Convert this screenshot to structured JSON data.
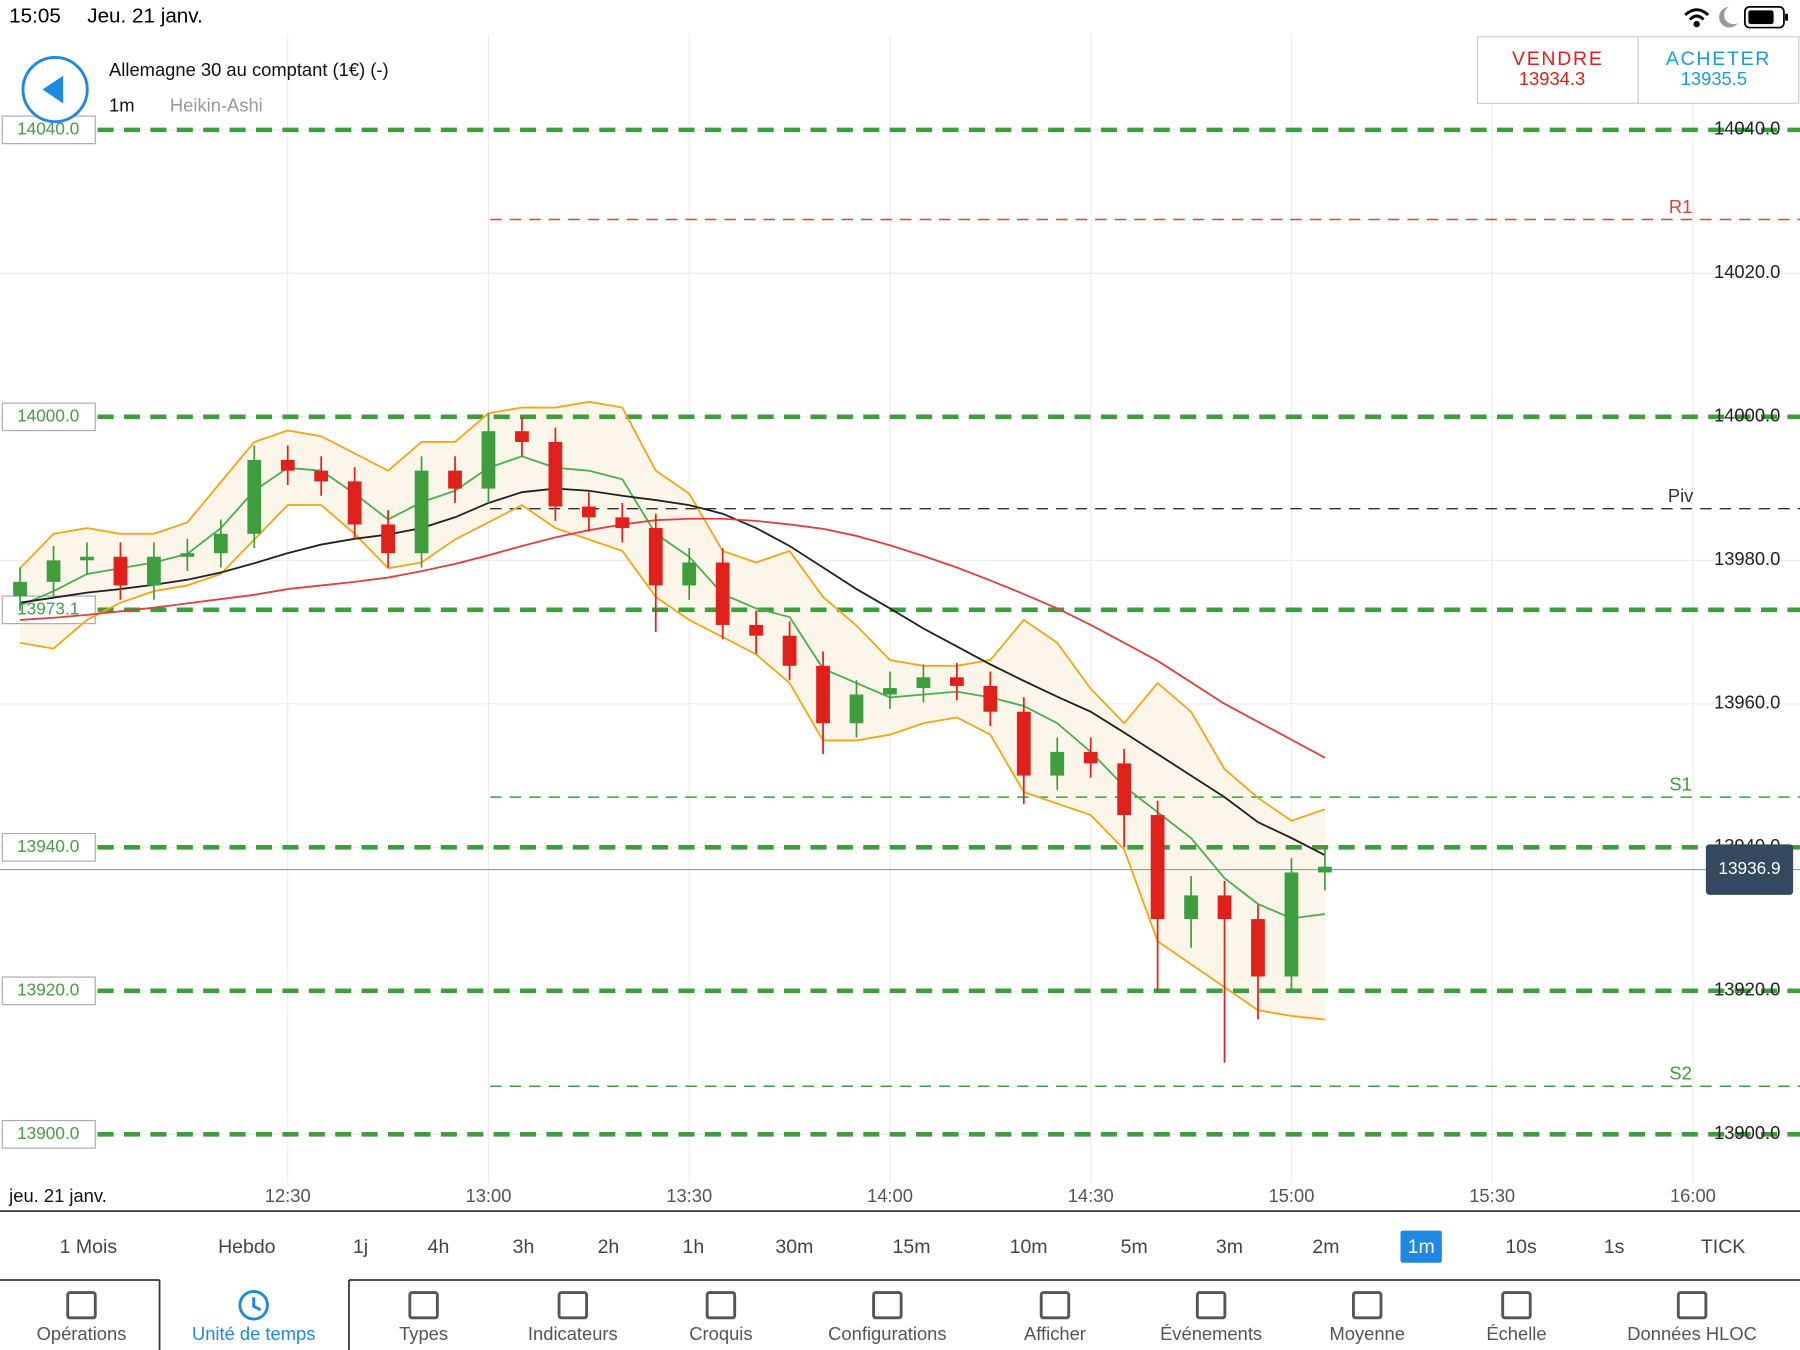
{
  "status_bar": {
    "time": "15:05",
    "date": "Jeu. 21 janv."
  },
  "header": {
    "title": "Allemagne 30 au comptant (1€) (-)",
    "timeframe": "1m",
    "chart_type": "Heikin-Ashi"
  },
  "quote": {
    "sell_label": "VENDRE",
    "sell_price": "13934.3",
    "buy_label": "ACHETER",
    "buy_price": "13935.5"
  },
  "chart_data": {
    "type": "candlestick",
    "date_label": "jeu. 21 janv.",
    "x": [
      "11:50",
      "11:55",
      "12:00",
      "12:05",
      "12:10",
      "12:15",
      "12:20",
      "12:25",
      "12:30",
      "12:35",
      "12:40",
      "12:45",
      "12:50",
      "12:55",
      "13:00",
      "13:05",
      "13:10",
      "13:15",
      "13:20",
      "13:25",
      "13:30",
      "13:35",
      "13:40",
      "13:45",
      "13:50",
      "13:55",
      "14:00",
      "14:05",
      "14:10",
      "14:15",
      "14:20",
      "14:25",
      "14:30",
      "14:35",
      "14:40",
      "14:45",
      "14:50",
      "14:55",
      "15:00",
      "15:05"
    ],
    "open": [
      13975,
      13977,
      13980,
      13980.5,
      13976.5,
      13980.5,
      13981,
      13983.7,
      13994,
      13992.5,
      13991,
      13985,
      13981,
      13992.5,
      13990,
      13998,
      13996.5,
      13987.5,
      13986,
      13984.5,
      13976.5,
      13979.7,
      13971,
      13969.5,
      13965.3,
      13957.3,
      13961.3,
      13962.2,
      13963.7,
      13962.5,
      13958.9,
      13950,
      13953.3,
      13951.7,
      13944.5,
      13930,
      13933.3,
      13930,
      13922,
      13936.5
    ],
    "high": [
      13979,
      13982,
      13982.5,
      13982.5,
      13982.5,
      13983,
      13985.7,
      13996,
      13996,
      13994.5,
      13993,
      13987,
      13994.5,
      13994.5,
      14000.5,
      14000,
      13998.5,
      13989.5,
      13988,
      13986.5,
      13981.7,
      13981.7,
      13973,
      13971.5,
      13967.3,
      13963.3,
      13964.5,
      13965.5,
      13965.7,
      13964.5,
      13960.9,
      13955.3,
      13955.3,
      13953.7,
      13946.5,
      13936,
      13935.3,
      13932,
      13938.5,
      13940
    ],
    "low": [
      13973,
      13975,
      13978,
      13974.5,
      13974.5,
      13978.5,
      13979,
      13981.7,
      13990.5,
      13989,
      13983,
      13979,
      13979,
      13988,
      13988,
      13994.5,
      13985.5,
      13984,
      13982.5,
      13970,
      13974.5,
      13969,
      13967,
      13963.3,
      13953,
      13955.3,
      13959.3,
      13960.2,
      13960.5,
      13956.9,
      13946,
      13948,
      13949.7,
      13940,
      13920,
      13926,
      13910,
      13916,
      13920,
      13934
    ],
    "close": [
      13977,
      13980,
      13980.5,
      13976.5,
      13980.5,
      13981,
      13983.7,
      13994,
      13992.5,
      13991,
      13985,
      13981,
      13992.5,
      13990,
      13998,
      13996.5,
      13987.5,
      13986,
      13984.5,
      13976.5,
      13979.7,
      13971,
      13969.5,
      13965.3,
      13957.3,
      13961.3,
      13962.2,
      13963.7,
      13962.5,
      13958.9,
      13950,
      13953.3,
      13951.7,
      13944.5,
      13930,
      13933.3,
      13930,
      13922,
      13936.5,
      13937.3
    ],
    "up_color": "#3e9e3e",
    "down_color": "#e0201b",
    "band_color": "#fcf6ea",
    "series": [
      {
        "color": "#f0a818",
        "values": [
          13978.9,
          13983.7,
          13984.5,
          13983.7,
          13983.7,
          13985.3,
          13990.9,
          13996.5,
          13998.1,
          13997.3,
          13994.9,
          13992.5,
          13996.5,
          13996.5,
          14000.5,
          14001.3,
          14001.3,
          14002.1,
          14001.3,
          13992.5,
          13989.3,
          13981.3,
          13979.7,
          13981.3,
          13974.9,
          13970.9,
          13966.1,
          13965.3,
          13965.3,
          13966.1,
          13971.7,
          13968.5,
          13962.1,
          13957.3,
          13962.9,
          13958.9,
          13950.9,
          13946.9,
          13943.7,
          13945.3
        ]
      },
      {
        "color": "#f0a818",
        "values": [
          13968.5,
          13967.7,
          13971.7,
          13974.1,
          13975.7,
          13976.5,
          13978.1,
          13982.9,
          13987.7,
          13987.7,
          13983.7,
          13978.9,
          13979.7,
          13982.9,
          13985.3,
          13987.7,
          13984.5,
          13982.9,
          13981.3,
          13974.9,
          13971.7,
          13969.3,
          13966.9,
          13962.9,
          13954.9,
          13954.9,
          13955.7,
          13957.3,
          13958.1,
          13955.7,
          13947.7,
          13946.1,
          13944.5,
          13939.7,
          13926.9,
          13923.7,
          13920.5,
          13917.3,
          13916.5,
          13916
        ]
      },
      {
        "color": "#4caf50",
        "values": [
          13973.7,
          13975.7,
          13978.1,
          13978.9,
          13979.7,
          13980.9,
          13984.5,
          13989.7,
          13992.9,
          13992.5,
          13989.3,
          13985.7,
          13988.1,
          13989.7,
          13992.9,
          13994.5,
          13992.9,
          13992.5,
          13991.3,
          13983.7,
          13980.5,
          13975.3,
          13973.3,
          13972.1,
          13964.9,
          13962.9,
          13960.9,
          13961.3,
          13961.7,
          13960.9,
          13959.7,
          13957.3,
          13953.3,
          13948.5,
          13944.9,
          13941.3,
          13935.7,
          13932.1,
          13930.1,
          13930.7
        ]
      },
      {
        "color": "#222222",
        "values": [
          13974.1,
          13974.8,
          13975.5,
          13976,
          13976.6,
          13977.3,
          13978.3,
          13979.6,
          13981,
          13982.2,
          13983,
          13983.6,
          13984.5,
          13986,
          13988,
          13989.5,
          13990,
          13989.7,
          13989,
          13988.4,
          13987.7,
          13986.5,
          13984.5,
          13982,
          13979,
          13976,
          13973.3,
          13970.5,
          13968,
          13965.5,
          13963.2,
          13961,
          13958.9,
          13956,
          13953,
          13950,
          13947,
          13943.5,
          13941.3,
          13938.9
        ]
      },
      {
        "color": "#e04040",
        "values": [
          13971.7,
          13972,
          13972.4,
          13972.9,
          13973.4,
          13974,
          13974.6,
          13975.2,
          13976,
          13976.5,
          13977,
          13977.6,
          13978.5,
          13979.5,
          13980.7,
          13982,
          13983.2,
          13984.2,
          13985,
          13985.6,
          13985.8,
          13985.8,
          13985.5,
          13985,
          13984.4,
          13983.4,
          13982.1,
          13980.6,
          13979,
          13977.2,
          13975.3,
          13973.3,
          13971,
          13968.5,
          13966,
          13963,
          13960,
          13957.5,
          13955,
          13952.5
        ]
      }
    ],
    "xlim": [
      "11:47",
      "16:16"
    ],
    "xticks": [
      "12:30",
      "13:00",
      "13:30",
      "14:00",
      "14:30",
      "15:00",
      "15:30",
      "16:00"
    ],
    "ylim": [
      13893.3,
      14053.3
    ],
    "yticks": [
      {
        "value": 14040,
        "label": "14040.0"
      },
      {
        "value": 14020,
        "label": "14020.0"
      },
      {
        "value": 14000,
        "label": "14000.0"
      },
      {
        "value": 13980,
        "label": "13980.0"
      },
      {
        "value": 13960,
        "label": "13960.0"
      },
      {
        "value": 13940,
        "label": "13940.0"
      },
      {
        "value": 13920,
        "label": "13920.0"
      },
      {
        "value": 13900,
        "label": "13900.0"
      }
    ],
    "grid": true,
    "levels": [
      {
        "value": 14040,
        "label": "14040.0"
      },
      {
        "value": 14000,
        "label": "14000.0"
      },
      {
        "value": 13973.1,
        "label": "13973.1"
      },
      {
        "value": 13940,
        "label": "13940.0"
      },
      {
        "value": 13920,
        "label": "13920.0"
      },
      {
        "value": 13900,
        "label": "13900.0"
      }
    ],
    "level_color": "#3e9e3e",
    "pivots": [
      {
        "label": "R1",
        "value": 14027.5,
        "color": "#e04040"
      },
      {
        "label": "Piv",
        "value": 13987.2,
        "color": "#333333"
      },
      {
        "label": "S1",
        "value": 13947,
        "color": "#3e9e3e"
      },
      {
        "label": "S2",
        "value": 13906.7,
        "color": "#3e9e3e"
      }
    ],
    "current_price": 13936.9
  },
  "timeframes": {
    "items": [
      "1 Mois",
      "Hebdo",
      "1j",
      "4h",
      "3h",
      "2h",
      "1h",
      "30m",
      "15m",
      "10m",
      "5m",
      "3m",
      "2m",
      "1m",
      "10s",
      "1s",
      "TICK"
    ],
    "selected": 13
  },
  "toolbar": {
    "items": [
      "Opérations",
      "Unité de temps",
      "Types",
      "Indicateurs",
      "Croquis",
      "Configurations",
      "Afficher",
      "Événements",
      "Moyenne",
      "Échelle",
      "Données HLOC"
    ],
    "selected": 1
  }
}
